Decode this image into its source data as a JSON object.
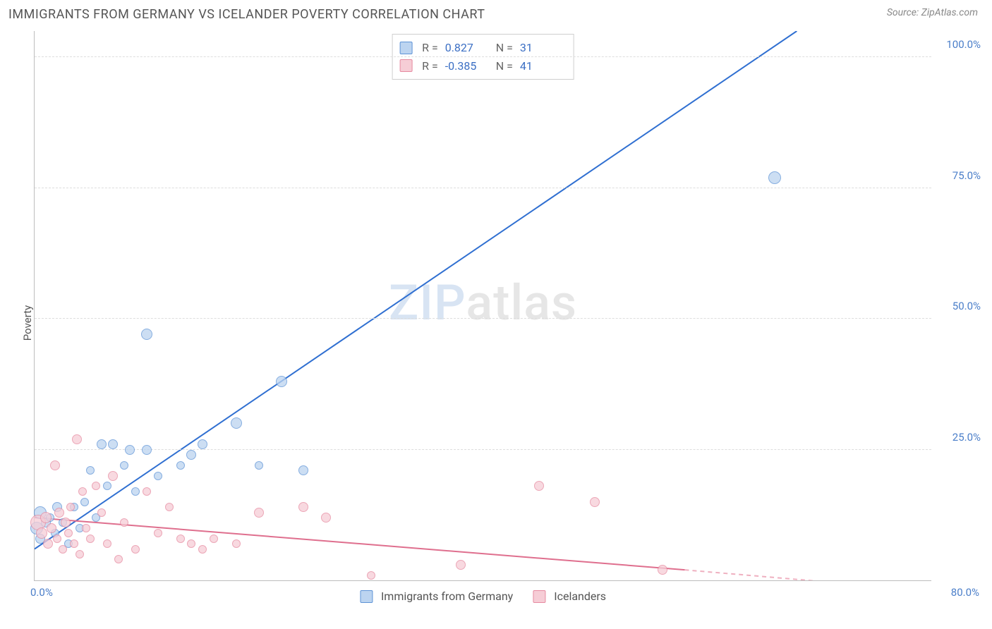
{
  "title": "IMMIGRANTS FROM GERMANY VS ICELANDER POVERTY CORRELATION CHART",
  "source_label": "Source: ZipAtlas.com",
  "ylabel": "Poverty",
  "watermark_a": "ZIP",
  "watermark_b": "atlas",
  "xlim": [
    0,
    80
  ],
  "ylim": [
    0,
    105
  ],
  "xtick_left_label": "0.0%",
  "xtick_right_label": "80.0%",
  "yticks": [
    {
      "v": 25,
      "label": "25.0%"
    },
    {
      "v": 50,
      "label": "50.0%"
    },
    {
      "v": 75,
      "label": "75.0%"
    },
    {
      "v": 100,
      "label": "100.0%"
    }
  ],
  "grid_color": "#dddddd",
  "axis_color": "#bdbdbd",
  "series": [
    {
      "key": "germany",
      "legend_label": "Immigrants from Germany",
      "fill": "#bcd4f0",
      "stroke": "#5e93d6",
      "stats": {
        "R": "0.827",
        "N": "31"
      },
      "trend": {
        "x1": 0,
        "y1": 6,
        "x2": 68,
        "y2": 105,
        "dash": false,
        "color": "#2f6fd1",
        "width": 2
      },
      "points": [
        {
          "x": 0.2,
          "y": 10,
          "r": 9
        },
        {
          "x": 0.5,
          "y": 8,
          "r": 7
        },
        {
          "x": 0.5,
          "y": 13,
          "r": 9
        },
        {
          "x": 1,
          "y": 11,
          "r": 7
        },
        {
          "x": 1.4,
          "y": 12,
          "r": 6
        },
        {
          "x": 1.8,
          "y": 9,
          "r": 6
        },
        {
          "x": 2,
          "y": 14,
          "r": 7
        },
        {
          "x": 2.5,
          "y": 11,
          "r": 6
        },
        {
          "x": 3,
          "y": 7,
          "r": 6
        },
        {
          "x": 3.5,
          "y": 14,
          "r": 6
        },
        {
          "x": 4,
          "y": 10,
          "r": 6
        },
        {
          "x": 4.5,
          "y": 15,
          "r": 6
        },
        {
          "x": 5,
          "y": 21,
          "r": 6
        },
        {
          "x": 5.5,
          "y": 12,
          "r": 6
        },
        {
          "x": 6,
          "y": 26,
          "r": 7
        },
        {
          "x": 6.5,
          "y": 18,
          "r": 6
        },
        {
          "x": 7,
          "y": 26,
          "r": 7
        },
        {
          "x": 8,
          "y": 22,
          "r": 6
        },
        {
          "x": 8.5,
          "y": 25,
          "r": 7
        },
        {
          "x": 9,
          "y": 17,
          "r": 6
        },
        {
          "x": 10,
          "y": 25,
          "r": 7
        },
        {
          "x": 11,
          "y": 20,
          "r": 6
        },
        {
          "x": 13,
          "y": 22,
          "r": 6
        },
        {
          "x": 14,
          "y": 24,
          "r": 7
        },
        {
          "x": 15,
          "y": 26,
          "r": 7
        },
        {
          "x": 10,
          "y": 47,
          "r": 8
        },
        {
          "x": 18,
          "y": 30,
          "r": 8
        },
        {
          "x": 20,
          "y": 22,
          "r": 6
        },
        {
          "x": 22,
          "y": 38,
          "r": 8
        },
        {
          "x": 24,
          "y": 21,
          "r": 7
        },
        {
          "x": 66,
          "y": 77,
          "r": 9
        }
      ]
    },
    {
      "key": "icelanders",
      "legend_label": "Icelanders",
      "fill": "#f6cdd6",
      "stroke": "#e68aa0",
      "stats": {
        "R": "-0.385",
        "N": "41"
      },
      "trend": {
        "x1": 0,
        "y1": 12,
        "x2": 58,
        "y2": 2,
        "dash": false,
        "color": "#df6f8e",
        "width": 2
      },
      "trend_ext": {
        "x1": 58,
        "y1": 2,
        "x2": 80,
        "y2": -2,
        "dash": true,
        "color": "#efb0c0",
        "width": 2
      },
      "points": [
        {
          "x": 0.3,
          "y": 11,
          "r": 11
        },
        {
          "x": 0.6,
          "y": 9,
          "r": 8
        },
        {
          "x": 1,
          "y": 12,
          "r": 8
        },
        {
          "x": 1.2,
          "y": 7,
          "r": 7
        },
        {
          "x": 1.5,
          "y": 10,
          "r": 7
        },
        {
          "x": 1.8,
          "y": 22,
          "r": 7
        },
        {
          "x": 2,
          "y": 8,
          "r": 6
        },
        {
          "x": 2.2,
          "y": 13,
          "r": 7
        },
        {
          "x": 2.5,
          "y": 6,
          "r": 6
        },
        {
          "x": 2.8,
          "y": 11,
          "r": 7
        },
        {
          "x": 3,
          "y": 9,
          "r": 6
        },
        {
          "x": 3.2,
          "y": 14,
          "r": 6
        },
        {
          "x": 3.5,
          "y": 7,
          "r": 6
        },
        {
          "x": 3.8,
          "y": 27,
          "r": 7
        },
        {
          "x": 4,
          "y": 5,
          "r": 6
        },
        {
          "x": 4.3,
          "y": 17,
          "r": 6
        },
        {
          "x": 4.6,
          "y": 10,
          "r": 6
        },
        {
          "x": 5,
          "y": 8,
          "r": 6
        },
        {
          "x": 5.5,
          "y": 18,
          "r": 6
        },
        {
          "x": 6,
          "y": 13,
          "r": 6
        },
        {
          "x": 6.5,
          "y": 7,
          "r": 6
        },
        {
          "x": 7,
          "y": 20,
          "r": 7
        },
        {
          "x": 7.5,
          "y": 4,
          "r": 6
        },
        {
          "x": 8,
          "y": 11,
          "r": 6
        },
        {
          "x": 9,
          "y": 6,
          "r": 6
        },
        {
          "x": 10,
          "y": 17,
          "r": 6
        },
        {
          "x": 11,
          "y": 9,
          "r": 6
        },
        {
          "x": 12,
          "y": 14,
          "r": 6
        },
        {
          "x": 13,
          "y": 8,
          "r": 6
        },
        {
          "x": 14,
          "y": 7,
          "r": 6
        },
        {
          "x": 15,
          "y": 6,
          "r": 6
        },
        {
          "x": 16,
          "y": 8,
          "r": 6
        },
        {
          "x": 18,
          "y": 7,
          "r": 6
        },
        {
          "x": 20,
          "y": 13,
          "r": 7
        },
        {
          "x": 24,
          "y": 14,
          "r": 7
        },
        {
          "x": 26,
          "y": 12,
          "r": 7
        },
        {
          "x": 30,
          "y": 1,
          "r": 6
        },
        {
          "x": 38,
          "y": 3,
          "r": 7
        },
        {
          "x": 45,
          "y": 18,
          "r": 7
        },
        {
          "x": 50,
          "y": 15,
          "r": 7
        },
        {
          "x": 56,
          "y": 2,
          "r": 7
        }
      ]
    }
  ],
  "stats_labels": {
    "R": "R =",
    "N": "N ="
  },
  "marker_opacity": 0.75
}
